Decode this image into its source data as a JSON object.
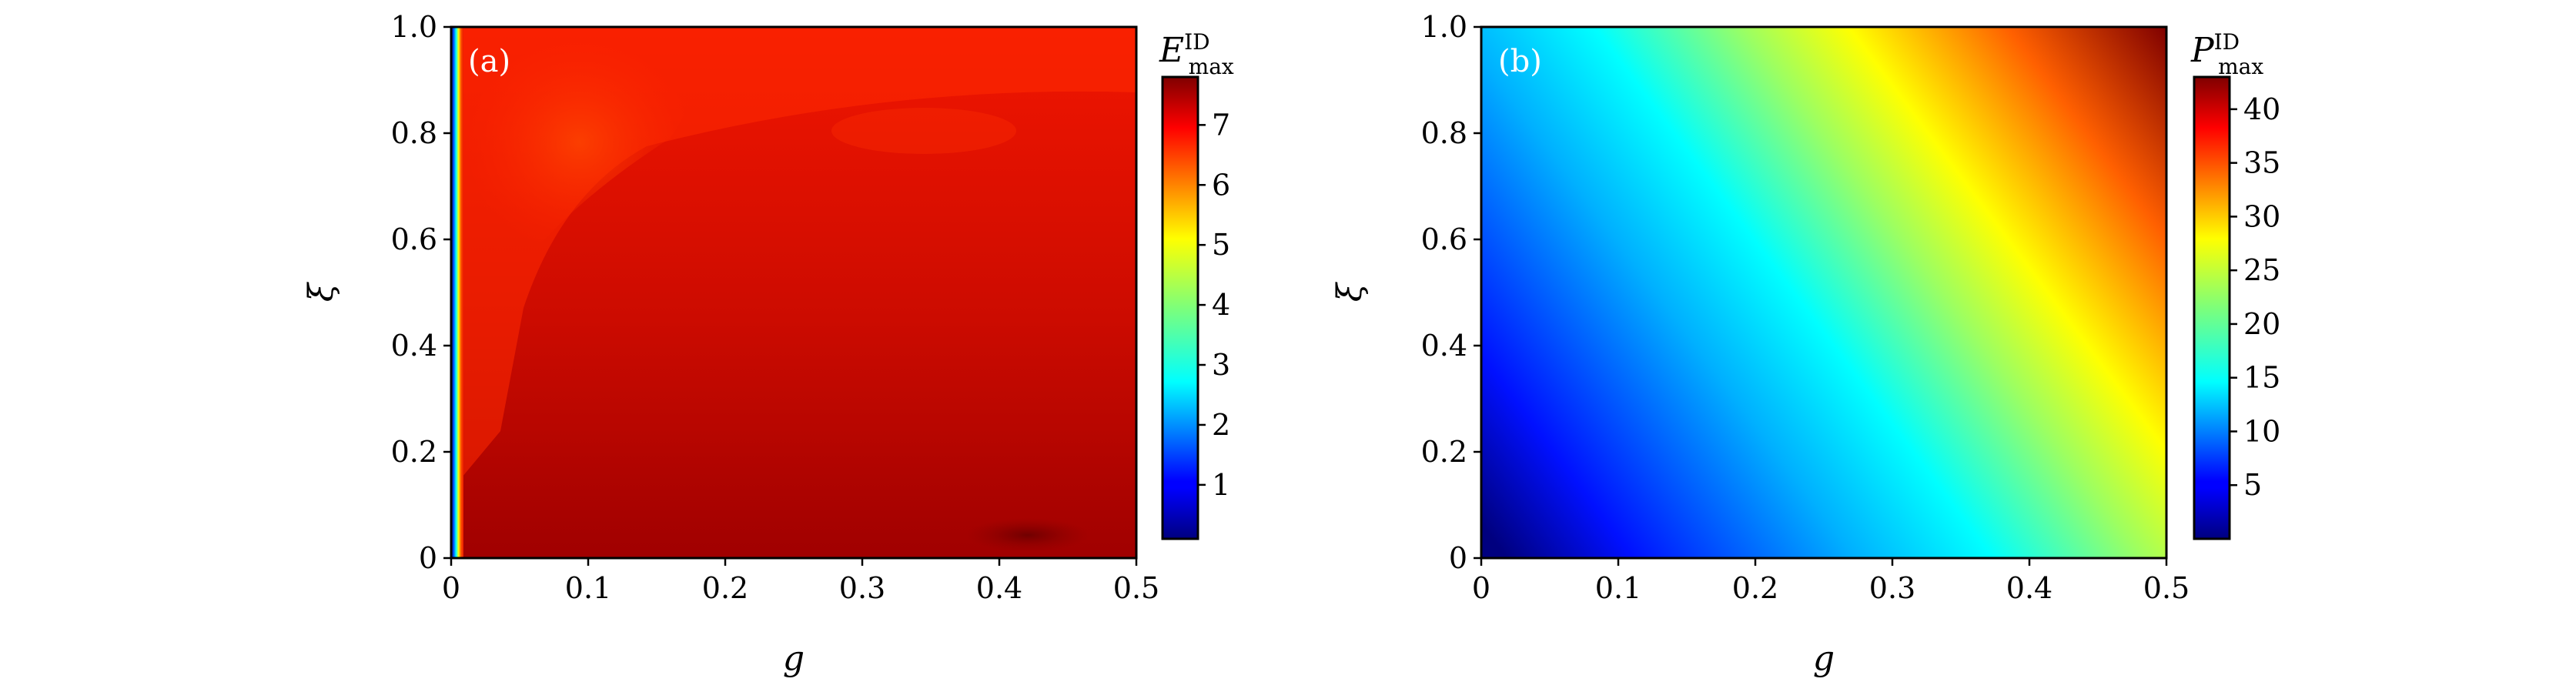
{
  "chart_data": [
    {
      "type": "heatmap",
      "panel_label": "(a)",
      "xlabel": "g",
      "ylabel": "ξ",
      "xlim": [
        0,
        0.5
      ],
      "ylim": [
        0,
        1.0
      ],
      "x_ticks": [
        "0",
        "0.1",
        "0.2",
        "0.3",
        "0.4",
        "0.5"
      ],
      "y_ticks": [
        "0",
        "0.2",
        "0.4",
        "0.6",
        "0.8",
        "1.0"
      ],
      "colorbar": {
        "label_main": "E",
        "label_sup": "ID",
        "label_sub": "max",
        "range": [
          0.1,
          7.8
        ],
        "ticks": [
          "1",
          "2",
          "3",
          "4",
          "5",
          "6",
          "7"
        ]
      }
    },
    {
      "type": "heatmap",
      "panel_label": "(b)",
      "xlabel": "g",
      "ylabel": "ξ",
      "xlim": [
        0,
        0.5
      ],
      "ylim": [
        0,
        1.0
      ],
      "x_ticks": [
        "0",
        "0.1",
        "0.2",
        "0.3",
        "0.4",
        "0.5"
      ],
      "y_ticks": [
        "0",
        "0.2",
        "0.4",
        "0.6",
        "0.8",
        "1.0"
      ],
      "colorbar": {
        "label_main": "P",
        "label_sup": "ID",
        "label_sub": "max",
        "range": [
          0,
          43
        ],
        "ticks": [
          "5",
          "10",
          "15",
          "20",
          "25",
          "30",
          "35",
          "40"
        ]
      }
    }
  ]
}
